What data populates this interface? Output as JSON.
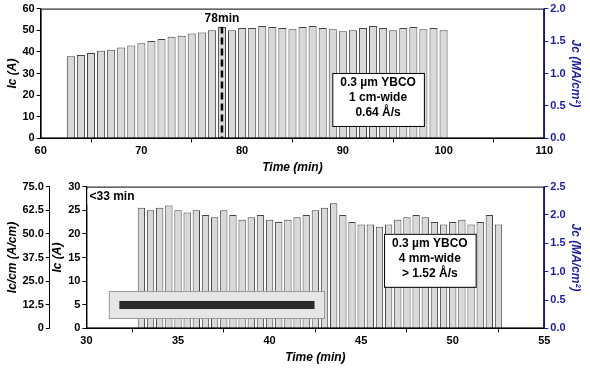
{
  "chart_data": [
    {
      "type": "bar",
      "x": [
        63,
        64,
        65,
        66,
        67,
        68,
        69,
        70,
        71,
        72,
        73,
        74,
        75,
        76,
        77,
        78,
        79,
        80,
        81,
        82,
        83,
        84,
        85,
        86,
        87,
        88,
        89,
        90,
        91,
        92,
        93,
        94,
        95,
        96,
        97,
        98,
        99,
        100
      ],
      "values": [
        38,
        38.5,
        39.5,
        40.5,
        41,
        42,
        43,
        44,
        45,
        46,
        47,
        47.5,
        48.5,
        49,
        50,
        51.5,
        50,
        51,
        51,
        52,
        51.5,
        51,
        50.5,
        51.5,
        52,
        51,
        50.5,
        49.5,
        50,
        51,
        52,
        51,
        50,
        51,
        51.5,
        50.5,
        51,
        50
      ],
      "color": "#d9d9d9",
      "xlabel": "Time (min)",
      "ylabel": "Ic (A)",
      "y2label": "Jc (MA/cm²)",
      "xlim": [
        60,
        110
      ],
      "xticks": [
        60,
        70,
        80,
        90,
        100,
        110
      ],
      "ylim": [
        0,
        60
      ],
      "yticks": [
        0,
        10,
        20,
        30,
        40,
        50,
        60
      ],
      "y2lim": [
        0,
        2
      ],
      "y2ticks": [
        {
          "value": 0,
          "label": "0.0"
        },
        0.5,
        {
          "value": 1,
          "label": "1.0"
        },
        1.5,
        {
          "value": 2,
          "label": "2.0"
        }
      ],
      "grid": false,
      "annotations": [
        {
          "text": "78min",
          "x": 78,
          "line_style": "dashed"
        }
      ],
      "note": [
        "0.3 µm YBCO",
        "1 cm-wide",
        "0.64 Å/s"
      ]
    },
    {
      "type": "bar",
      "x": [
        33,
        33.5,
        34,
        34.5,
        35,
        35.5,
        36,
        36.5,
        37,
        37.5,
        38,
        38.5,
        39,
        39.5,
        40,
        40.5,
        41,
        41.5,
        42,
        42.5,
        43,
        43.5,
        44,
        44.5,
        45,
        45.5,
        46,
        46.5,
        47,
        47.5,
        48,
        48.5,
        49,
        49.5,
        50,
        50.5,
        51,
        51.5,
        52,
        52.5
      ],
      "values": [
        25.5,
        25,
        25.5,
        26,
        25,
        24.5,
        25,
        24,
        23.5,
        25,
        24,
        23,
        23.5,
        24,
        23,
        22.5,
        23,
        23.5,
        24,
        25,
        25.5,
        26.5,
        24,
        22.5,
        22,
        22,
        21.5,
        22,
        23,
        23.5,
        24,
        23.5,
        22.5,
        22,
        22.5,
        23,
        22,
        22.5,
        24,
        22
      ],
      "color": "#d9d9d9",
      "xlabel": "Time (min)",
      "ylabel": "Ic (A)",
      "y2label": "Jc (MA/cm²)",
      "y3label": "Ic/cm (A/cm)",
      "xlim": [
        30,
        55
      ],
      "xticks": [
        30,
        35,
        40,
        45,
        50,
        55
      ],
      "ylim": [
        0,
        30
      ],
      "yticks": [
        0,
        5,
        10,
        15,
        20,
        25,
        30
      ],
      "y2lim": [
        0,
        2.5
      ],
      "y2ticks": [
        {
          "value": 0,
          "label": "0.0"
        },
        0.5,
        {
          "value": 1,
          "label": "1.0"
        },
        1.5,
        {
          "value": 2,
          "label": "2.0"
        },
        2.5
      ],
      "y3lim": [
        0,
        75
      ],
      "y3ticks": [
        0,
        12.5,
        {
          "value": 25,
          "label": "25.0"
        },
        37.5,
        {
          "value": 50,
          "label": "50.0"
        },
        62.5,
        {
          "value": 75,
          "label": "75.0"
        }
      ],
      "grid": false,
      "annotations": [
        {
          "text": "<33 min"
        }
      ],
      "note": [
        "0.3 µm YBCO",
        "4 mm-wide",
        "> 1.52 Å/s"
      ]
    }
  ]
}
